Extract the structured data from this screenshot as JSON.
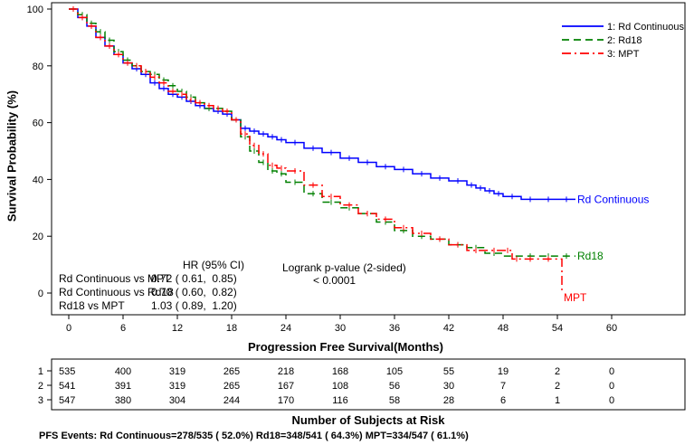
{
  "chart_data": {
    "type": "line",
    "title": "",
    "xlabel": "Progression Free Survival(Months)",
    "ylabel": "Survival Probability (%)",
    "xlim": [
      0,
      60
    ],
    "ylim": [
      0,
      100
    ],
    "xticks": [
      0,
      6,
      12,
      18,
      24,
      30,
      36,
      42,
      48,
      54,
      60
    ],
    "yticks": [
      0,
      20,
      40,
      60,
      80,
      100
    ],
    "grid": false,
    "legend_position": "top-right",
    "series": [
      {
        "name": "1: Rd Continuous",
        "end_label": "Rd Continuous",
        "color": "#0000ff",
        "dash": "solid",
        "x": [
          0,
          1,
          2,
          3,
          4,
          5,
          6,
          7,
          8,
          9,
          10,
          11,
          12,
          13,
          14,
          15,
          16,
          17,
          18,
          19,
          20,
          21,
          22,
          23,
          24,
          26,
          28,
          30,
          32,
          34,
          36,
          38,
          40,
          42,
          44,
          45,
          46,
          47,
          48,
          50,
          52,
          54,
          56
        ],
        "y": [
          100,
          97,
          94,
          90,
          87,
          84,
          81,
          79,
          77,
          74,
          72,
          70,
          69,
          67.5,
          66,
          65,
          64,
          63,
          61,
          58,
          57,
          56,
          55,
          54,
          53,
          51,
          49.5,
          47.5,
          46,
          44.5,
          43.5,
          42,
          40.5,
          39.5,
          38,
          37,
          36,
          35,
          34,
          33,
          33,
          33,
          33
        ]
      },
      {
        "name": "2: Rd18",
        "end_label": "Rd18",
        "color": "#008000",
        "dash": "8,5",
        "x": [
          0,
          1,
          2,
          3,
          4,
          5,
          6,
          7,
          8,
          9,
          10,
          11,
          12,
          13,
          14,
          15,
          16,
          17,
          18,
          19,
          20,
          21,
          22,
          23,
          24,
          26,
          28,
          30,
          32,
          34,
          36,
          38,
          40,
          42,
          44,
          46,
          48,
          50,
          52,
          54,
          56
        ],
        "y": [
          100,
          98,
          95,
          92,
          89,
          85,
          82,
          80,
          78,
          77,
          75,
          73,
          71,
          69,
          67,
          65,
          65,
          64,
          61,
          55,
          50,
          46,
          43,
          42,
          39,
          35,
          32,
          30,
          28,
          25,
          22,
          20,
          19,
          17,
          16,
          14,
          13,
          13,
          13,
          13,
          13
        ]
      },
      {
        "name": "3: MPT",
        "end_label": "MPT",
        "color": "#ff0000",
        "dash": "10,4,2,4",
        "x": [
          0,
          1,
          2,
          3,
          4,
          5,
          6,
          7,
          8,
          9,
          10,
          11,
          12,
          13,
          14,
          15,
          16,
          17,
          18,
          19,
          20,
          21,
          22,
          23,
          24,
          26,
          28,
          30,
          32,
          34,
          36,
          38,
          40,
          42,
          44,
          46,
          48,
          49,
          50,
          52,
          54,
          54.5
        ],
        "y": [
          100,
          97,
          94,
          90,
          87,
          84,
          81,
          80,
          78,
          76,
          74,
          71,
          70,
          68,
          67,
          66,
          65,
          64,
          61,
          56,
          52,
          49,
          45,
          44,
          43,
          38,
          34,
          31,
          28,
          26,
          23,
          21,
          19,
          17,
          15,
          15,
          15,
          12,
          12,
          12,
          12,
          1
        ]
      }
    ],
    "annotations": {
      "hr_header": "HR (95% CI)",
      "logrank_header": "Logrank p-value (2-sided)",
      "logrank_value": "< 0.0001",
      "rows": [
        {
          "label": "Rd Continuous vs MPT",
          "value": "0.72 ( 0.61,  0.85)"
        },
        {
          "label": "Rd Continuous vs Rd18",
          "value": "0.70 ( 0.60,  0.82)"
        },
        {
          "label": "Rd18 vs MPT",
          "value": "1.03 ( 0.89,  1.20)"
        }
      ]
    },
    "risk_table": {
      "title": "Number of Subjects at Risk",
      "times": [
        0,
        6,
        12,
        18,
        24,
        30,
        36,
        42,
        48,
        54,
        60
      ],
      "rows": [
        {
          "label": "1",
          "values": [
            "535",
            "400",
            "319",
            "265",
            "218",
            "168",
            "105",
            "55",
            "19",
            "2",
            "0"
          ]
        },
        {
          "label": "2",
          "values": [
            "541",
            "391",
            "319",
            "265",
            "167",
            "108",
            "56",
            "30",
            "7",
            "2",
            "0"
          ]
        },
        {
          "label": "3",
          "values": [
            "547",
            "380",
            "304",
            "244",
            "170",
            "116",
            "58",
            "28",
            "6",
            "1",
            "0"
          ]
        }
      ]
    },
    "footnote": "PFS Events: Rd Continuous=278/535 ( 52.0%) Rd18=348/541 ( 64.3%) MPT=334/547 ( 61.1%)"
  }
}
